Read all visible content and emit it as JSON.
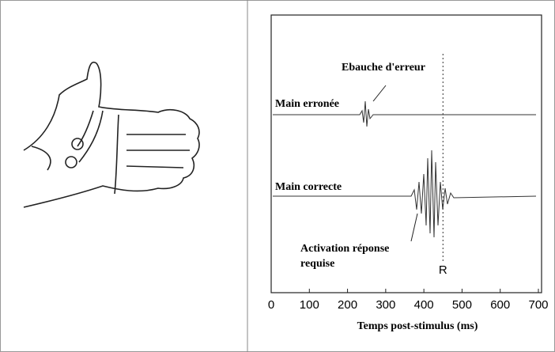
{
  "chart_data": {
    "type": "line",
    "xlabel": "Temps post-stimulus (ms)",
    "xlim": [
      0,
      700
    ],
    "xticks": [
      0,
      100,
      200,
      300,
      400,
      500,
      600,
      700
    ],
    "trace_labels": [
      "Main erronée",
      "Main correcte"
    ],
    "annotations": [
      "Ebauche d'erreur",
      "Activation réponse requise"
    ],
    "marker": {
      "x": 450,
      "label": "R"
    }
  }
}
